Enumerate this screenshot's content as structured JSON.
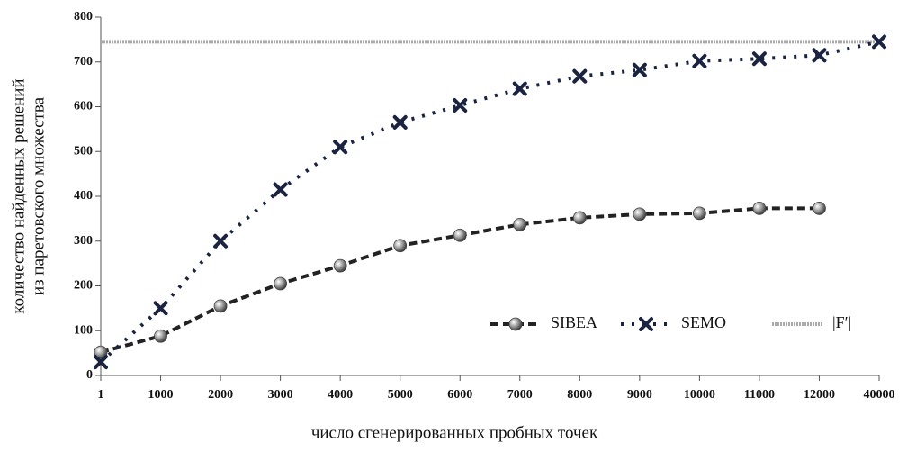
{
  "chart_data": {
    "type": "line",
    "y_label": [
      "количество найденных решений",
      "из паретовского множества"
    ],
    "x_label": "число сгенерированных пробных точек",
    "categories": [
      "1",
      "1000",
      "2000",
      "3000",
      "4000",
      "5000",
      "6000",
      "7000",
      "8000",
      "9000",
      "10000",
      "11000",
      "12000",
      "40000"
    ],
    "series": [
      {
        "name": "SIBEA",
        "color": "#222222",
        "marker": "sphere",
        "line_style": "dashed",
        "values": [
          52,
          88,
          155,
          205,
          245,
          290,
          313,
          337,
          352,
          360,
          362,
          373,
          373,
          null
        ]
      },
      {
        "name": "SEMO",
        "color": "#1a2440",
        "marker": "x",
        "line_style": "dotted",
        "values": [
          30,
          150,
          300,
          415,
          510,
          565,
          603,
          640,
          668,
          682,
          702,
          707,
          715,
          745
        ]
      }
    ],
    "reference_line": {
      "name": "|F′|",
      "value": 745,
      "color": "#aaaaaa"
    },
    "ylim": [
      0,
      800
    ],
    "yticks": [
      0,
      100,
      200,
      300,
      400,
      500,
      600,
      700,
      800
    ],
    "legend": "bottom-right"
  }
}
